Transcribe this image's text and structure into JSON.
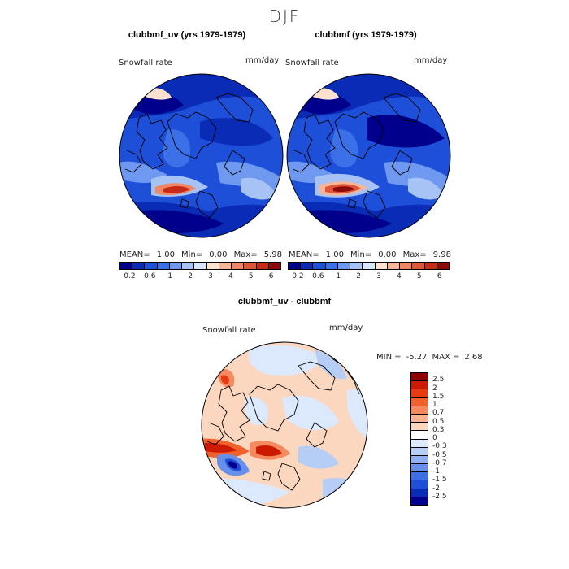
{
  "season": "DJF",
  "panels": {
    "left": {
      "title": "clubbmf_uv (yrs 1979-1979)",
      "field": "Snowfall rate",
      "units": "mm/day",
      "stats": {
        "mean_label": "MEAN=",
        "mean": "1.00",
        "min_label": "Min=",
        "min": "0.00",
        "max_label": "Max=",
        "max": "5.98"
      }
    },
    "right": {
      "title": "clubbmf (yrs 1979-1979)",
      "field": "Snowfall rate",
      "units": "mm/day",
      "stats": {
        "mean_label": "MEAN=",
        "mean": "1.00",
        "min_label": "Min=",
        "min": "0.00",
        "max_label": "Max=",
        "max": "9.98"
      }
    },
    "diff": {
      "title": "clubbmf_uv - clubbmf",
      "field": "Snowfall rate",
      "units": "mm/day",
      "min_label": "MIN =",
      "min": "-5.27",
      "max_label": "MAX =",
      "max": "2.68"
    }
  },
  "colorbars": {
    "seq_colors": [
      "#00008c",
      "#0a2bb5",
      "#1e4fd8",
      "#3c70e8",
      "#6f98f0",
      "#a7c3f5",
      "#d9e6fb",
      "#fde2d0",
      "#f7b697",
      "#f08665",
      "#e0543a",
      "#c72a17",
      "#8c0a0a"
    ],
    "seq_ticks": [
      "0.2",
      "0.6",
      "1",
      "2",
      "3",
      "4",
      "5",
      "6"
    ],
    "diff_colors": [
      "#8c0000",
      "#cc1a00",
      "#e83a10",
      "#f2602c",
      "#f58a60",
      "#f8b390",
      "#fcd7c0",
      "#ffffff",
      "#dce8fb",
      "#b6cdf6",
      "#8fb0f0",
      "#6690ea",
      "#3f6fe2",
      "#1f4fd6",
      "#0a2db8",
      "#00008c"
    ],
    "diff_ticks": [
      "2.5",
      "2",
      "1.5",
      "1",
      "0.7",
      "0.5",
      "0.3",
      "0",
      "-0.3",
      "-0.5",
      "-0.7",
      "-1",
      "-1.5",
      "-2",
      "-2.5"
    ]
  }
}
